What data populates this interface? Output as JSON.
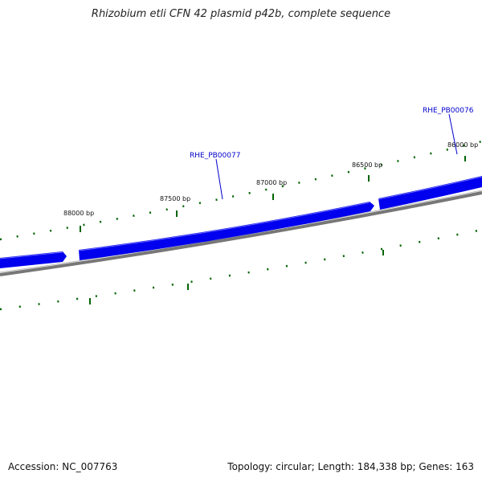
{
  "title": "Rhizobium etli CFN 42 plasmid p42b, complete sequence",
  "footer": {
    "accession": "Accession: NC_007763",
    "summary": "Topology: circular; Length: 184,338 bp; Genes: 163"
  },
  "colors": {
    "gene": "#0000ee",
    "backbone": "#777777",
    "tick": "#006400",
    "gene_label": "#0000cc"
  },
  "ticks": [
    {
      "label": "86000 bp"
    },
    {
      "label": "86500 bp"
    },
    {
      "label": "87000 bp"
    },
    {
      "label": "87500 bp"
    },
    {
      "label": "88000 bp"
    }
  ],
  "genes": [
    {
      "label": "RHE_PB00076"
    },
    {
      "label": "RHE_PB00077"
    }
  ]
}
